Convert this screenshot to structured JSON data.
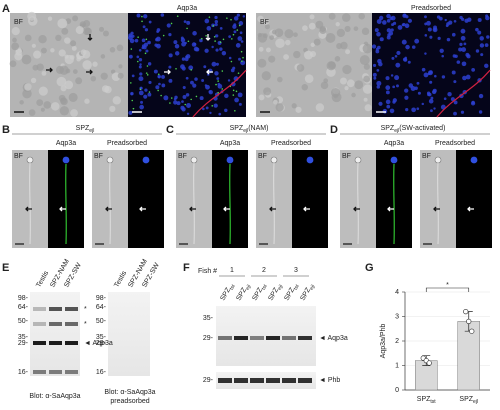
{
  "panel_a": {
    "label": "A",
    "left": {
      "bf": "BF",
      "stain": "Aqp3a"
    },
    "right": {
      "bf": "BF",
      "stain": "Preadsorbed"
    }
  },
  "panel_b": {
    "label": "B",
    "title": "SPZ",
    "title_sub": "ejl",
    "stain": "Aqp3a",
    "control": "Preadsorbed",
    "bf": "BF"
  },
  "panel_c": {
    "label": "C",
    "title": "SPZ",
    "title_sub": "ejl",
    "title_suffix": "(NAM)",
    "stain": "Aqp3a",
    "control": "Preadsorbed",
    "bf": "BF"
  },
  "panel_d": {
    "label": "D",
    "title": "SPZ",
    "title_sub": "ejl",
    "title_suffix": "(SW-activated)",
    "stain": "Aqp3a",
    "control": "Preadsorbed",
    "bf": "BF"
  },
  "panel_e": {
    "label": "E",
    "lanes": [
      "Testis",
      "SPZ-NAM",
      "SPZ-SW"
    ],
    "markers": [
      "98-",
      "64-",
      "50-",
      "35-",
      "29-",
      "16-"
    ],
    "asterisks": [
      "*",
      "*"
    ],
    "band": "◄ Aqp3a",
    "blot_left": "Blot: α-SaAqp3a",
    "blot_right": [
      "Blot: α-SaAqp3a",
      "preadsorbed"
    ]
  },
  "panel_f": {
    "label": "F",
    "fish_label": "Fish #",
    "fish": [
      "1",
      "2",
      "3"
    ],
    "lane_base": "SPZ",
    "lane_subs": [
      "tst",
      "ejl",
      "tst",
      "ejl",
      "tst",
      "ejl"
    ],
    "markers_top": [
      "35-",
      "29-"
    ],
    "markers_bottom": [
      "29-"
    ],
    "bands": [
      "◄ Aqp3a",
      "◄ Phb"
    ]
  },
  "chart_data": {
    "type": "bar",
    "panel_label": "G",
    "y_label": "Aqp3a/Phb",
    "categories": [
      "SPZ",
      "SPZ"
    ],
    "category_subscripts": [
      "tst",
      "ejl"
    ],
    "values": [
      1.2,
      2.8
    ],
    "errors": [
      0.2,
      0.4
    ],
    "points": [
      [
        1.3,
        1.2,
        1.1
      ],
      [
        3.2,
        2.8,
        2.4
      ]
    ],
    "color": "#d9d9d9",
    "ylim": [
      0,
      4
    ],
    "yticks": [
      0,
      1,
      2,
      3,
      4
    ],
    "grid": true,
    "significance": "*"
  }
}
